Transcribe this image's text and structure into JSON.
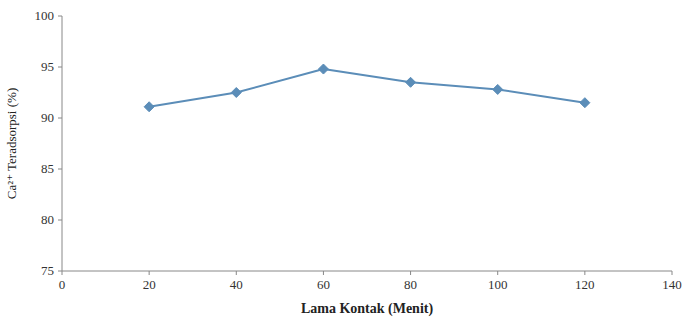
{
  "chart_data": {
    "type": "line",
    "x": [
      20,
      40,
      60,
      80,
      100,
      120
    ],
    "values": [
      91.1,
      92.5,
      94.8,
      93.5,
      92.8,
      91.5
    ],
    "color": "#5b8db8",
    "marker": "diamond",
    "xlabel": "Lama Kontak (Menit)",
    "ylabel": "Ca²⁺ Teradsorpsi (%)",
    "xlim": [
      0,
      140
    ],
    "ylim": [
      75,
      100
    ],
    "xticks": [
      0,
      20,
      40,
      60,
      80,
      100,
      120,
      140
    ],
    "yticks": [
      75,
      80,
      85,
      90,
      95,
      100
    ],
    "grid": false
  }
}
